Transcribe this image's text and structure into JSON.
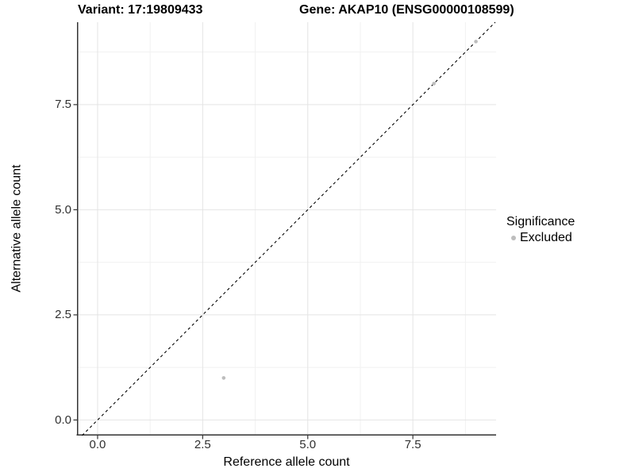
{
  "header": {
    "variant_title": "Variant: 17:19809433",
    "gene_title": "Gene: AKAP10 (ENSG00000108599)"
  },
  "chart_data": {
    "type": "scatter",
    "xlabel": "Reference allele count",
    "ylabel": "Alternative allele count",
    "xlim": [
      -0.49,
      9.48
    ],
    "ylim": [
      -0.37,
      9.46
    ],
    "x_ticks": [
      0.0,
      2.5,
      5.0,
      7.5
    ],
    "y_ticks": [
      0.0,
      2.5,
      5.0,
      7.5
    ],
    "x_tick_labels": [
      "0.0",
      "2.5",
      "5.0",
      "7.5"
    ],
    "y_tick_labels": [
      "0.0",
      "2.5",
      "5.0",
      "7.5"
    ],
    "x_minor_ticks": [
      1.25,
      3.75,
      6.25,
      8.75
    ],
    "y_minor_ticks": [
      1.25,
      3.75,
      6.25,
      8.75
    ],
    "grid": true,
    "series": [
      {
        "name": "Excluded",
        "color": "#bdbdbd",
        "points": [
          {
            "x": 3,
            "y": 1
          },
          {
            "x": 8,
            "y": 8
          },
          {
            "x": 9,
            "y": 9
          }
        ]
      }
    ],
    "reference_line": {
      "type": "identity",
      "equation": "y = x",
      "style": "dashed",
      "color": "#000000"
    },
    "legend": {
      "title": "Significance",
      "position": "right",
      "items": [
        {
          "label": "Excluded",
          "color": "#bdbdbd"
        }
      ]
    },
    "colors": {
      "major_grid": "#e4e4e4",
      "minor_grid": "#f1f1f1",
      "axis_line": "#333333",
      "tick_mark": "#333333",
      "point": "#bdbdbd"
    }
  }
}
